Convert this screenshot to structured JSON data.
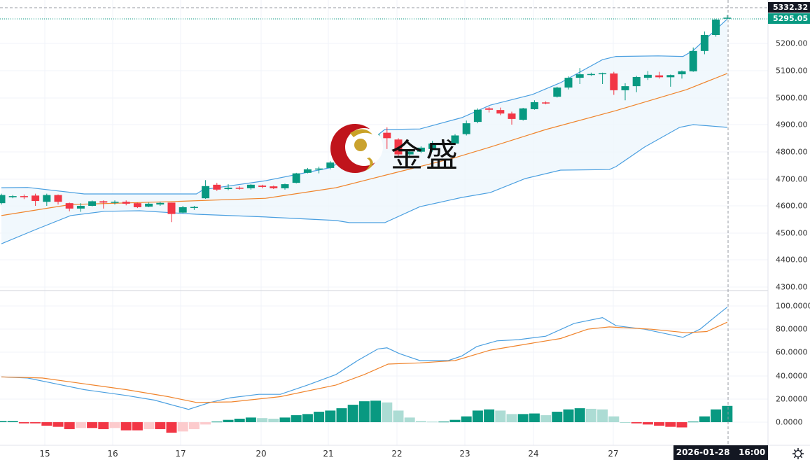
{
  "colors": {
    "up": "#089981",
    "down": "#f23645",
    "up_light": "#acdcd4",
    "down_light": "#fccbcd",
    "band": "#4a9fe0",
    "mid": "#f0842c",
    "dif": "#4a9fe0",
    "dea": "#f0842c"
  },
  "price_axis": {
    "labels": [
      "5200.00",
      "5100.00",
      "5000.00",
      "4900.00",
      "4800.00",
      "4700.00",
      "4600.00",
      "4500.00",
      "4400.00",
      "4300.00"
    ],
    "last_tag": "5332.32",
    "current_tag": "5295.05"
  },
  "indicator_axis": {
    "labels": [
      "100.0000",
      "80.0000",
      "60.0000",
      "40.0000",
      "20.0000",
      "0.0000"
    ]
  },
  "time_axis": {
    "labels": [
      "15",
      "16",
      "17",
      "20",
      "21",
      "22",
      "23",
      "24",
      "27"
    ],
    "crosshair_date": "2026-01-28",
    "crosshair_time": "16:00"
  },
  "watermark": {
    "text": "金盛"
  },
  "settings_icon": "gear-icon",
  "chart_data": {
    "type": "candlestick",
    "price_range": [
      4300,
      5332.32
    ],
    "ohlc": [
      [
        4610,
        4645,
        4605,
        4640
      ],
      [
        4632,
        4640,
        4628,
        4636
      ],
      [
        4636,
        4642,
        4625,
        4632
      ],
      [
        4638,
        4645,
        4600,
        4618
      ],
      [
        4615,
        4645,
        4600,
        4640
      ],
      [
        4640,
        4642,
        4605,
        4615
      ],
      [
        4610,
        4612,
        4580,
        4590
      ],
      [
        4590,
        4610,
        4578,
        4600
      ],
      [
        4600,
        4620,
        4598,
        4617
      ],
      [
        4617,
        4620,
        4590,
        4612
      ],
      [
        4613,
        4620,
        4605,
        4615
      ],
      [
        4615,
        4620,
        4602,
        4608
      ],
      [
        4610,
        4612,
        4592,
        4595
      ],
      [
        4597,
        4612,
        4595,
        4608
      ],
      [
        4605,
        4615,
        4600,
        4611
      ],
      [
        4612,
        4612,
        4540,
        4570
      ],
      [
        4575,
        4600,
        4573,
        4595
      ],
      [
        4593,
        4600,
        4585,
        4596
      ],
      [
        4628,
        4695,
        4626,
        4673
      ],
      [
        4678,
        4685,
        4655,
        4660
      ],
      [
        4662,
        4680,
        4658,
        4667
      ],
      [
        4667,
        4672,
        4660,
        4663
      ],
      [
        4665,
        4680,
        4660,
        4678
      ],
      [
        4675,
        4678,
        4665,
        4670
      ],
      [
        4672,
        4675,
        4662,
        4665
      ],
      [
        4665,
        4682,
        4660,
        4680
      ],
      [
        4685,
        4722,
        4683,
        4720
      ],
      [
        4722,
        4740,
        4720,
        4735
      ],
      [
        4735,
        4745,
        4720,
        4738
      ],
      [
        4740,
        4765,
        4735,
        4760
      ],
      [
        4760,
        4795,
        4755,
        4790
      ],
      [
        4790,
        4845,
        4785,
        4840
      ],
      [
        4830,
        4860,
        4825,
        4855
      ],
      [
        4855,
        4872,
        4850,
        4865
      ],
      [
        4870,
        4890,
        4810,
        4850
      ],
      [
        4845,
        4850,
        4780,
        4790
      ],
      [
        4790,
        4810,
        4780,
        4800
      ],
      [
        4800,
        4820,
        4795,
        4815
      ],
      [
        4810,
        4840,
        4800,
        4830
      ],
      [
        4832,
        4840,
        4825,
        4830
      ],
      [
        4830,
        4865,
        4825,
        4860
      ],
      [
        4865,
        4915,
        4860,
        4905
      ],
      [
        4910,
        4960,
        4905,
        4955
      ],
      [
        4960,
        4965,
        4945,
        4955
      ],
      [
        4954,
        4963,
        4935,
        4941
      ],
      [
        4941,
        4948,
        4900,
        4921
      ],
      [
        4918,
        4962,
        4915,
        4960
      ],
      [
        4957,
        4990,
        4955,
        4983
      ],
      [
        4982,
        4986,
        4975,
        4980
      ],
      [
        5003,
        5040,
        5000,
        5037
      ],
      [
        5037,
        5078,
        5030,
        5073
      ],
      [
        5073,
        5109,
        5050,
        5086
      ],
      [
        5085,
        5092,
        5080,
        5087
      ],
      [
        5088,
        5092,
        5050,
        5090
      ],
      [
        5089,
        5095,
        5010,
        5027
      ],
      [
        5027,
        5053,
        4990,
        5042
      ],
      [
        5042,
        5080,
        5020,
        5076
      ],
      [
        5073,
        5098,
        5065,
        5084
      ],
      [
        5082,
        5095,
        5070,
        5075
      ],
      [
        5075,
        5085,
        5040,
        5083
      ],
      [
        5086,
        5100,
        5070,
        5097
      ],
      [
        5097,
        5185,
        5095,
        5172
      ],
      [
        5172,
        5244,
        5160,
        5231
      ],
      [
        5231,
        5290,
        5225,
        5288
      ],
      [
        5293,
        5305,
        5290,
        5295
      ]
    ],
    "boll_upper": [
      [
        0,
        4667
      ],
      [
        2.3,
        4668
      ],
      [
        7.3,
        4644
      ],
      [
        17.2,
        4644
      ],
      [
        17.8,
        4660
      ],
      [
        23.3,
        4693
      ],
      [
        28.9,
        4740
      ],
      [
        30.7,
        4780
      ],
      [
        33.8,
        4882
      ],
      [
        36.9,
        4884
      ],
      [
        40.6,
        4926
      ],
      [
        43.1,
        4972
      ],
      [
        46.8,
        5011
      ],
      [
        49.3,
        5055
      ],
      [
        53,
        5140
      ],
      [
        54.2,
        5152
      ],
      [
        57.9,
        5154
      ],
      [
        60.1,
        5152
      ],
      [
        61,
        5174
      ],
      [
        64,
        5290
      ]
    ],
    "boll_mid": [
      [
        0,
        4564
      ],
      [
        6.1,
        4605
      ],
      [
        15.3,
        4616
      ],
      [
        23.3,
        4628
      ],
      [
        29.5,
        4667
      ],
      [
        34.4,
        4719
      ],
      [
        40,
        4778
      ],
      [
        43.1,
        4817
      ],
      [
        48,
        4882
      ],
      [
        54.2,
        4952
      ],
      [
        60.4,
        5029
      ],
      [
        64,
        5089
      ]
    ],
    "boll_lower": [
      [
        0,
        4460
      ],
      [
        3,
        4512
      ],
      [
        6.1,
        4564
      ],
      [
        9.1,
        4580
      ],
      [
        12.2,
        4582
      ],
      [
        17.2,
        4569
      ],
      [
        23.3,
        4559
      ],
      [
        29.5,
        4546
      ],
      [
        30.7,
        4538
      ],
      [
        33.8,
        4538
      ],
      [
        36.9,
        4597
      ],
      [
        40.6,
        4631
      ],
      [
        43.1,
        4649
      ],
      [
        46.2,
        4701
      ],
      [
        49.3,
        4732
      ],
      [
        53.6,
        4734
      ],
      [
        54.2,
        4745
      ],
      [
        56.7,
        4817
      ],
      [
        59.8,
        4890
      ],
      [
        61,
        4900
      ],
      [
        64,
        4890
      ]
    ],
    "indicator_range": [
      -10,
      105
    ],
    "dif": [
      [
        0,
        39
      ],
      [
        2.3,
        38
      ],
      [
        4.8,
        33
      ],
      [
        7.3,
        28
      ],
      [
        11,
        23
      ],
      [
        13.5,
        19
      ],
      [
        16.5,
        11
      ],
      [
        18.4,
        17
      ],
      [
        20.2,
        21
      ],
      [
        22.7,
        24
      ],
      [
        24.6,
        24
      ],
      [
        27,
        32
      ],
      [
        29.5,
        41
      ],
      [
        31.4,
        53
      ],
      [
        33.2,
        63
      ],
      [
        34,
        64
      ],
      [
        35.1,
        59
      ],
      [
        36.9,
        53
      ],
      [
        39.4,
        53
      ],
      [
        40.6,
        57
      ],
      [
        41.9,
        65
      ],
      [
        43.7,
        70
      ],
      [
        45.6,
        71
      ],
      [
        48,
        74
      ],
      [
        50.5,
        85
      ],
      [
        53,
        90
      ],
      [
        54.2,
        83
      ],
      [
        56.7,
        80
      ],
      [
        60.1,
        73
      ],
      [
        61.6,
        80
      ],
      [
        63.1,
        92
      ],
      [
        64,
        99
      ]
    ],
    "dea": [
      [
        0,
        39
      ],
      [
        3.6,
        38
      ],
      [
        7.3,
        33
      ],
      [
        11,
        28
      ],
      [
        14.7,
        22
      ],
      [
        17.2,
        17
      ],
      [
        20.3,
        17.5
      ],
      [
        24.6,
        22
      ],
      [
        29.5,
        32
      ],
      [
        32,
        41
      ],
      [
        34.1,
        50
      ],
      [
        36.9,
        51
      ],
      [
        40,
        53
      ],
      [
        43.1,
        62
      ],
      [
        46.8,
        68
      ],
      [
        49.3,
        72
      ],
      [
        51.7,
        80
      ],
      [
        53.6,
        82
      ],
      [
        57.3,
        80
      ],
      [
        60.4,
        77
      ],
      [
        62.2,
        78
      ],
      [
        64,
        86
      ]
    ],
    "histogram": [
      1,
      1,
      -1,
      -1,
      -3,
      -4,
      -6,
      -5,
      -5,
      -6,
      -5,
      -7,
      -7,
      -6,
      -6,
      -9,
      -8,
      -6,
      -2,
      0.5,
      2,
      3,
      4,
      3.5,
      3,
      4,
      6,
      7,
      9,
      10,
      12,
      15,
      18,
      18.5,
      17,
      10,
      4,
      1,
      0.5,
      0.5,
      2,
      5,
      10,
      11,
      10,
      7,
      7,
      7.5,
      6,
      9,
      11,
      12,
      11.5,
      11,
      5,
      0,
      -1,
      -2,
      -3,
      -4,
      -4.5,
      0.5,
      5,
      11,
      14
    ]
  }
}
